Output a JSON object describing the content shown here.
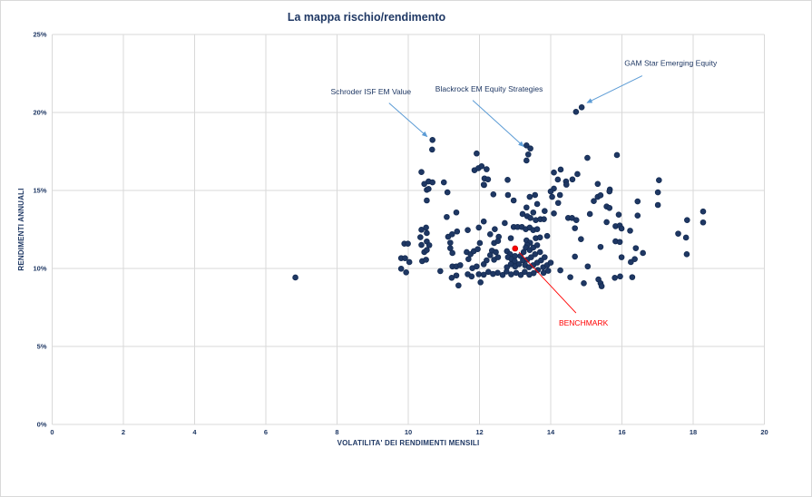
{
  "chart_data": {
    "type": "scatter",
    "title": "La mappa rischio/rendimento",
    "xlabel": "VOLATILITA' DEI RENDIMENTI MENSILI",
    "ylabel": "RENDIMENTI ANNUALI",
    "xlim": [
      0,
      20
    ],
    "xtick_step": 2,
    "ylim": [
      0,
      25
    ],
    "ytick_step": 5,
    "ytick_suffix": "%",
    "grid": true,
    "legend": "none",
    "colors": {
      "title": "#1f3864",
      "axis_text": "#1f3864",
      "grid": "#d9d9d9",
      "point_fill": "#1f3864",
      "point_stroke": "#142b52",
      "benchmark": "#ff0000",
      "annotation_arrow": "#5b9bd5",
      "annotation_text": "#1f3864"
    },
    "series": [
      {
        "name": "funds",
        "points": [
          [
            10.68,
            18.24
          ],
          [
            10.67,
            17.62
          ],
          [
            11.92,
            17.37
          ],
          [
            10.37,
            16.18
          ],
          [
            10.57,
            15.58
          ],
          [
            10.68,
            15.52
          ],
          [
            11.0,
            15.52
          ],
          [
            11.86,
            16.3
          ],
          [
            11.97,
            16.43
          ],
          [
            12.06,
            16.55
          ],
          [
            12.2,
            16.36
          ],
          [
            12.14,
            15.77
          ],
          [
            12.24,
            15.71
          ],
          [
            12.13,
            15.35
          ],
          [
            10.52,
            15.04
          ],
          [
            14.71,
            20.04
          ],
          [
            14.87,
            20.33
          ],
          [
            13.32,
            17.89
          ],
          [
            13.43,
            17.69
          ],
          [
            13.37,
            17.31
          ],
          [
            13.32,
            16.92
          ],
          [
            15.03,
            17.09
          ],
          [
            15.86,
            17.27
          ],
          [
            12.79,
            15.68
          ],
          [
            14.09,
            16.15
          ],
          [
            14.28,
            16.34
          ],
          [
            14.2,
            15.7
          ],
          [
            14.43,
            15.58
          ],
          [
            14.61,
            15.71
          ],
          [
            14.75,
            16.05
          ],
          [
            15.32,
            15.42
          ],
          [
            14.09,
            15.12
          ],
          [
            15.66,
            15.06
          ],
          [
            17.04,
            15.66
          ],
          [
            10.45,
            15.42
          ],
          [
            10.57,
            15.1
          ],
          [
            11.1,
            14.88
          ],
          [
            10.52,
            14.36
          ],
          [
            11.08,
            13.3
          ],
          [
            11.35,
            13.59
          ],
          [
            10.37,
            12.48
          ],
          [
            10.5,
            12.62
          ],
          [
            10.52,
            12.27
          ],
          [
            10.34,
            12.0
          ],
          [
            10.52,
            11.73
          ],
          [
            9.89,
            11.59
          ],
          [
            9.99,
            11.59
          ],
          [
            10.37,
            11.51
          ],
          [
            11.12,
            12.03
          ],
          [
            11.23,
            12.19
          ],
          [
            11.37,
            12.37
          ],
          [
            11.67,
            12.46
          ],
          [
            11.98,
            12.62
          ],
          [
            11.18,
            11.65
          ],
          [
            12.12,
            15.37
          ],
          [
            12.39,
            14.75
          ],
          [
            12.8,
            14.71
          ],
          [
            12.96,
            14.36
          ],
          [
            13.41,
            14.59
          ],
          [
            13.56,
            14.71
          ],
          [
            13.62,
            14.13
          ],
          [
            13.32,
            13.91
          ],
          [
            13.83,
            13.68
          ],
          [
            13.21,
            13.49
          ],
          [
            13.34,
            13.35
          ],
          [
            13.43,
            13.24
          ],
          [
            13.51,
            13.59
          ],
          [
            13.58,
            13.1
          ],
          [
            13.71,
            13.16
          ],
          [
            13.81,
            13.16
          ],
          [
            14.09,
            13.53
          ],
          [
            12.12,
            13.01
          ],
          [
            12.43,
            12.52
          ],
          [
            12.71,
            12.91
          ],
          [
            12.96,
            12.66
          ],
          [
            13.07,
            12.66
          ],
          [
            13.19,
            12.66
          ],
          [
            13.3,
            12.52
          ],
          [
            13.41,
            12.62
          ],
          [
            13.51,
            12.46
          ],
          [
            13.62,
            12.52
          ],
          [
            12.3,
            12.19
          ],
          [
            12.54,
            12.03
          ],
          [
            12.88,
            11.94
          ],
          [
            13.32,
            11.8
          ],
          [
            13.42,
            11.65
          ],
          [
            13.58,
            11.94
          ],
          [
            13.7,
            11.99
          ],
          [
            13.9,
            12.08
          ],
          [
            13.34,
            11.51
          ],
          [
            14.0,
            14.94
          ],
          [
            14.04,
            14.59
          ],
          [
            14.26,
            14.71
          ],
          [
            14.21,
            14.2
          ],
          [
            14.44,
            15.37
          ],
          [
            15.21,
            14.32
          ],
          [
            15.32,
            14.59
          ],
          [
            14.49,
            13.24
          ],
          [
            14.6,
            13.24
          ],
          [
            14.72,
            13.1
          ],
          [
            15.1,
            13.49
          ],
          [
            14.68,
            12.58
          ],
          [
            14.85,
            11.88
          ],
          [
            15.57,
            12.97
          ],
          [
            12.41,
            11.63
          ],
          [
            12.52,
            11.76
          ],
          [
            12.35,
            11.14
          ],
          [
            12.46,
            11.05
          ],
          [
            12.3,
            10.85
          ],
          [
            12.2,
            10.52
          ],
          [
            12.41,
            10.56
          ],
          [
            12.52,
            10.72
          ],
          [
            12.12,
            10.27
          ],
          [
            12.77,
            11.11
          ],
          [
            12.86,
            10.91
          ],
          [
            12.8,
            10.72
          ],
          [
            12.9,
            10.6
          ],
          [
            13.0,
            10.8
          ],
          [
            12.99,
            10.47
          ],
          [
            12.88,
            10.27
          ],
          [
            12.77,
            10.08
          ],
          [
            13.0,
            10.13
          ],
          [
            13.11,
            10.27
          ],
          [
            13.22,
            10.52
          ],
          [
            13.15,
            10.8
          ],
          [
            13.24,
            11.05
          ],
          [
            13.3,
            11.34
          ],
          [
            13.41,
            11.18
          ],
          [
            13.51,
            11.34
          ],
          [
            13.62,
            11.49
          ],
          [
            13.7,
            11.05
          ],
          [
            13.56,
            10.91
          ],
          [
            13.45,
            10.72
          ],
          [
            13.34,
            10.56
          ],
          [
            13.28,
            10.21
          ],
          [
            13.39,
            10.08
          ],
          [
            13.51,
            10.21
          ],
          [
            13.62,
            10.37
          ],
          [
            13.73,
            10.52
          ],
          [
            13.83,
            10.72
          ],
          [
            13.79,
            10.08
          ],
          [
            13.9,
            10.21
          ],
          [
            14.0,
            10.37
          ],
          [
            13.93,
            9.85
          ],
          [
            13.8,
            9.72
          ],
          [
            13.64,
            9.9
          ],
          [
            13.52,
            9.7
          ],
          [
            13.4,
            9.6
          ],
          [
            13.27,
            9.78
          ],
          [
            13.16,
            9.58
          ],
          [
            13.03,
            9.72
          ],
          [
            12.89,
            9.62
          ],
          [
            12.76,
            9.8
          ],
          [
            12.65,
            9.58
          ],
          [
            12.51,
            9.72
          ],
          [
            12.38,
            9.65
          ],
          [
            12.25,
            9.78
          ],
          [
            12.12,
            9.6
          ],
          [
            14.27,
            9.88
          ],
          [
            14.55,
            9.44
          ],
          [
            14.68,
            10.76
          ],
          [
            15.04,
            10.13
          ],
          [
            14.93,
            9.05
          ],
          [
            15.4,
            11.38
          ],
          [
            15.34,
            9.3
          ],
          [
            10.59,
            11.49
          ],
          [
            10.45,
            11.05
          ],
          [
            10.52,
            11.18
          ],
          [
            9.8,
            10.66
          ],
          [
            9.91,
            10.66
          ],
          [
            10.03,
            10.41
          ],
          [
            9.8,
            9.98
          ],
          [
            9.94,
            9.75
          ],
          [
            10.39,
            10.47
          ],
          [
            10.5,
            10.56
          ],
          [
            11.18,
            11.3
          ],
          [
            11.24,
            10.99
          ],
          [
            10.9,
            9.83
          ],
          [
            11.24,
            10.13
          ],
          [
            11.35,
            10.13
          ],
          [
            11.46,
            10.21
          ],
          [
            11.22,
            9.4
          ],
          [
            11.35,
            9.55
          ],
          [
            11.41,
            8.91
          ],
          [
            11.64,
            11.05
          ],
          [
            11.75,
            10.91
          ],
          [
            11.84,
            11.11
          ],
          [
            11.95,
            11.24
          ],
          [
            12.01,
            11.63
          ],
          [
            11.69,
            10.6
          ],
          [
            11.8,
            10.02
          ],
          [
            11.92,
            10.13
          ],
          [
            11.67,
            9.63
          ],
          [
            11.78,
            9.49
          ],
          [
            11.98,
            9.63
          ],
          [
            12.03,
            9.11
          ],
          [
            15.65,
            14.94
          ],
          [
            15.4,
            14.69
          ],
          [
            17.01,
            14.88
          ],
          [
            15.57,
            13.97
          ],
          [
            15.65,
            13.88
          ],
          [
            16.44,
            14.3
          ],
          [
            17.01,
            14.07
          ],
          [
            15.91,
            13.45
          ],
          [
            16.44,
            13.39
          ],
          [
            18.28,
            13.65
          ],
          [
            15.82,
            12.71
          ],
          [
            15.94,
            12.75
          ],
          [
            15.99,
            12.56
          ],
          [
            16.23,
            12.42
          ],
          [
            17.83,
            13.1
          ],
          [
            18.28,
            12.95
          ],
          [
            17.58,
            12.23
          ],
          [
            17.8,
            11.98
          ],
          [
            15.82,
            11.74
          ],
          [
            15.94,
            11.7
          ],
          [
            16.39,
            11.3
          ],
          [
            16.59,
            10.99
          ],
          [
            15.99,
            10.72
          ],
          [
            16.36,
            10.6
          ],
          [
            16.25,
            10.41
          ],
          [
            17.82,
            10.91
          ],
          [
            15.8,
            9.4
          ],
          [
            15.95,
            9.49
          ],
          [
            16.29,
            9.44
          ],
          [
            15.4,
            9.05
          ],
          [
            15.43,
            8.86
          ],
          [
            6.83,
            9.42
          ]
        ]
      }
    ],
    "benchmark": {
      "label": "BENCHMARK",
      "x": 13.0,
      "y": 11.28,
      "label_x": 14.92,
      "label_y": 6.35,
      "arrow": [
        14.71,
        7.15,
        13.11,
        11.05
      ]
    },
    "annotations": [
      {
        "label": "Schroder ISF EM Value",
        "anchor": "end",
        "label_x": 10.08,
        "label_y": 21.15,
        "arrow": [
          9.46,
          20.6,
          10.53,
          18.45
        ]
      },
      {
        "label": "Blackrock EM Equity Strategies",
        "anchor": "middle",
        "label_x": 12.27,
        "label_y": 21.35,
        "arrow": [
          11.81,
          20.78,
          13.24,
          17.82
        ]
      },
      {
        "label": "GAM Star Emerging Equity",
        "anchor": "middle",
        "label_x": 17.37,
        "label_y": 23.0,
        "arrow": [
          16.57,
          22.35,
          15.02,
          20.62
        ]
      }
    ]
  }
}
